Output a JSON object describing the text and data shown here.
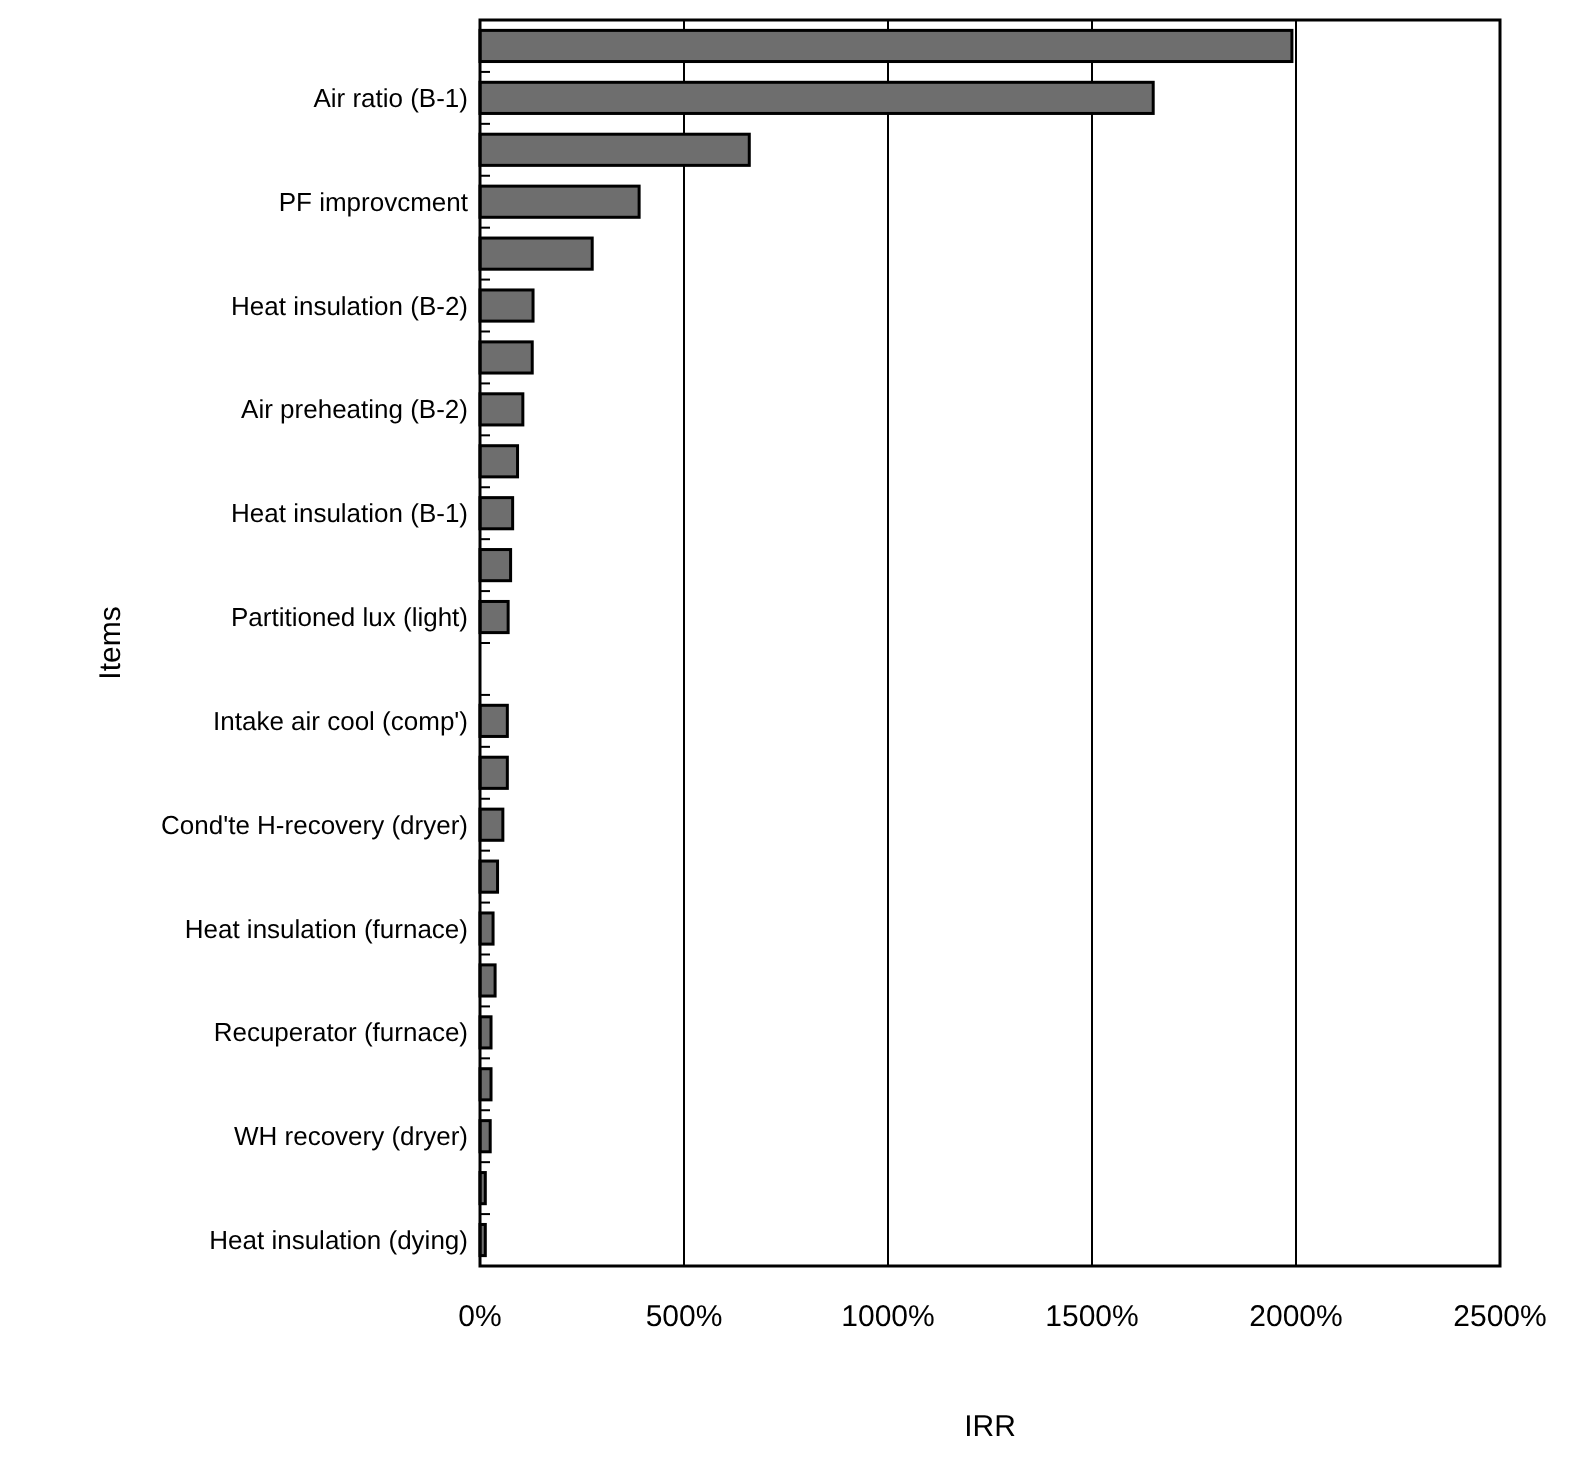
{
  "chart_data": {
    "type": "bar",
    "orientation": "horizontal",
    "xlabel": "IRR",
    "ylabel": "Items",
    "categories": [
      null,
      "Air ratio (B-1)",
      null,
      "PF improvcment",
      null,
      "Heat insulation (B-2)",
      null,
      "Air preheating (B-2)",
      null,
      "Heat insulation (B-1)",
      null,
      "Partitioned lux (light)",
      null,
      "Intake air cool (comp')",
      null,
      "Cond'te H-recovery (dryer)",
      null,
      "Heat insulation (furnace)",
      null,
      "Recuperator (furnace)",
      null,
      "WH recovery (dryer)",
      null,
      "Heat insulation (dying)"
    ],
    "values": [
      1990,
      1650,
      660,
      390,
      275,
      130,
      128,
      105,
      92,
      80,
      75,
      69,
      null,
      67,
      67,
      56,
      43,
      32,
      37,
      27,
      27,
      25,
      13,
      13
    ],
    "color": "#6e6e6e",
    "xlim": [
      0,
      2500
    ],
    "xticks": [
      {
        "value": 0,
        "label": "0%"
      },
      {
        "value": 500,
        "label": "500%"
      },
      {
        "value": 1000,
        "label": "1000%"
      },
      {
        "value": 1500,
        "label": "1500%"
      },
      {
        "value": 2000,
        "label": "2000%"
      },
      {
        "value": 2500,
        "label": "2500%"
      }
    ],
    "grid": "x"
  }
}
